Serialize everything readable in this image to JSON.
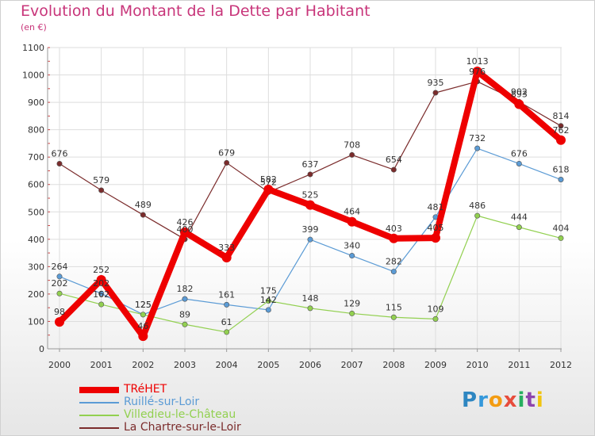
{
  "header": {
    "title": "Evolution du Montant de la Dette par Habitant",
    "subtitle": "(en €)"
  },
  "chart_data": {
    "type": "line",
    "title": "Evolution du Montant de la Dette par Habitant",
    "subtitle": "(en €)",
    "xlabel": "",
    "ylabel": "",
    "categories": [
      "2000",
      "2001",
      "2002",
      "2003",
      "2004",
      "2005",
      "2006",
      "2007",
      "2008",
      "2009",
      "2010",
      "2011",
      "2012"
    ],
    "ylim": [
      0,
      1100
    ],
    "yticks": [
      0,
      100,
      200,
      300,
      400,
      500,
      600,
      700,
      800,
      900,
      1000,
      1100
    ],
    "grid": true,
    "legend_position": "bottom-left",
    "series": [
      {
        "name": "TRéHET",
        "color": "#ee0000",
        "values": [
          98,
          252,
          46,
          426,
          333,
          582,
          525,
          464,
          403,
          405,
          1013,
          893,
          762
        ]
      },
      {
        "name": "Ruillé-sur-Loir",
        "color": "#5b9bd5",
        "values": [
          264,
          202,
          125,
          182,
          161,
          142,
          399,
          340,
          282,
          481,
          732,
          676,
          618
        ]
      },
      {
        "name": "Villedieu-le-Château",
        "color": "#92d050",
        "values": [
          202,
          162,
          125,
          89,
          61,
          175,
          148,
          129,
          115,
          109,
          486,
          444,
          404
        ]
      },
      {
        "name": "La Chartre-sur-le-Loir",
        "color": "#7b2c2c",
        "values": [
          676,
          579,
          489,
          400,
          679,
          572,
          637,
          708,
          654,
          935,
          976,
          902,
          814
        ]
      }
    ]
  },
  "colors": {
    "title": "#c8357a",
    "grid": "#dddddd",
    "axis_text": "#333333"
  },
  "logo": {
    "letters": [
      "P",
      "r",
      "o",
      "x",
      "i",
      "t",
      "i"
    ],
    "colors": [
      "#2e86c1",
      "#3498db",
      "#f39c12",
      "#e74c3c",
      "#27ae60",
      "#8e44ad",
      "#f1c40f"
    ]
  }
}
